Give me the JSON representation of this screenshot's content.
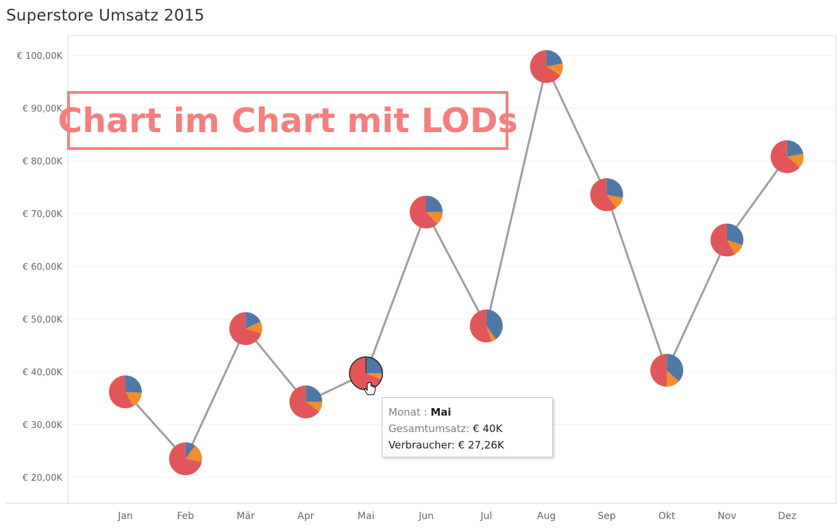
{
  "title": "Superstore Umsatz 2015",
  "banner": "Chart im Chart mit LODs",
  "tooltip": {
    "month_label": "Monat :",
    "month_value": "Mai",
    "total_label": "Gesamtumsatz:",
    "total_value": "€ 40K",
    "consumer_label": "Verbraucher:",
    "consumer_value": "€ 27,26K"
  },
  "colors": {
    "segment_consumer": "#e15759",
    "segment_corporate": "#4e79a7",
    "segment_home_office": "#f28e2b",
    "line": "#9e9e9e",
    "banner": "#f57f7f"
  },
  "chart_data": {
    "type": "line",
    "categories": [
      "Jan",
      "Feb",
      "Mär",
      "Apr",
      "Mai",
      "Jun",
      "Jul",
      "Aug",
      "Sep",
      "Okt",
      "Nov",
      "Dez"
    ],
    "values": [
      36.2,
      23.5,
      48.2,
      34.3,
      39.7,
      70.3,
      48.7,
      97.9,
      73.6,
      40.3,
      65.0,
      80.8
    ],
    "y_unit": "K €",
    "ylim": [
      15,
      103
    ],
    "y_ticks": [
      "€ 20,00K",
      "€ 30,00K",
      "€ 40,00K",
      "€ 50,00K",
      "€ 60,00K",
      "€ 70,00K",
      "€ 80,00K",
      "€ 90,00K",
      "€ 100,00K"
    ],
    "y_tick_values": [
      20,
      30,
      40,
      50,
      60,
      70,
      80,
      90,
      100
    ],
    "grid": true,
    "pie_series_shares": [
      [
        0.58,
        0.16,
        0.26
      ],
      [
        0.72,
        0.18,
        0.1
      ],
      [
        0.7,
        0.12,
        0.18
      ],
      [
        0.65,
        0.1,
        0.25
      ],
      [
        0.69,
        0.06,
        0.25
      ],
      [
        0.62,
        0.13,
        0.25
      ],
      [
        0.55,
        0.05,
        0.4
      ],
      [
        0.66,
        0.12,
        0.22
      ],
      [
        0.6,
        0.12,
        0.28
      ],
      [
        0.5,
        0.13,
        0.37
      ],
      [
        0.58,
        0.12,
        0.3
      ],
      [
        0.64,
        0.14,
        0.22
      ]
    ]
  }
}
